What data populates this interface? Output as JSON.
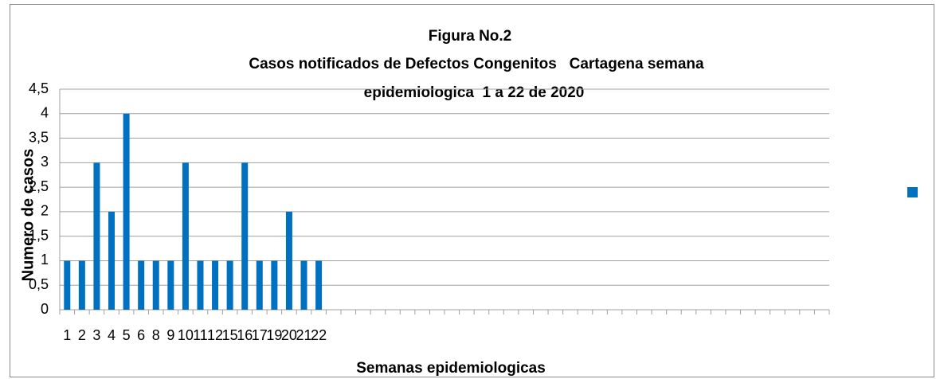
{
  "chart_data": {
    "type": "bar",
    "title": [
      "Figura No.2",
      "Casos notificados de Defectos Congenitos   Cartagena semana",
      "epidemiologica  1 a 22 de 2020"
    ],
    "ylabel": "Numero de casos",
    "xlabel": "Semanas epidemiologicas",
    "categories": [
      "1",
      "2",
      "3",
      "4",
      "5",
      "6",
      "8",
      "9",
      "10",
      "11",
      "12",
      "15",
      "16",
      "17",
      "19",
      "20",
      "21",
      "22",
      null,
      null,
      null,
      null,
      null,
      null,
      null,
      null,
      null,
      null,
      null,
      null,
      null,
      null,
      null,
      null,
      null,
      null,
      null,
      null,
      null,
      null,
      null,
      null,
      null,
      null,
      null,
      null,
      null,
      null,
      null,
      null,
      null,
      null
    ],
    "values": [
      1,
      1,
      3,
      2,
      4,
      1,
      1,
      1,
      3,
      1,
      1,
      1,
      3,
      1,
      1,
      2,
      1,
      1,
      null,
      null,
      null,
      null,
      null,
      null,
      null,
      null,
      null,
      null,
      null,
      null,
      null,
      null,
      null,
      null,
      null,
      null,
      null,
      null,
      null,
      null,
      null,
      null,
      null,
      null,
      null,
      null,
      null,
      null,
      null,
      null,
      null,
      null
    ],
    "color": "#0070c0",
    "ylim": [
      0,
      4.5
    ],
    "yticks": [
      0,
      {
        "value": 0.5,
        "label": "0,5"
      },
      1,
      {
        "value": 1.5,
        "label": "1,5"
      },
      2,
      {
        "value": 2.5,
        "label": "2,5"
      },
      3,
      {
        "value": 3.5,
        "label": "3,5"
      },
      4,
      {
        "value": 4.5,
        "label": "4,5"
      }
    ],
    "grid": true
  }
}
